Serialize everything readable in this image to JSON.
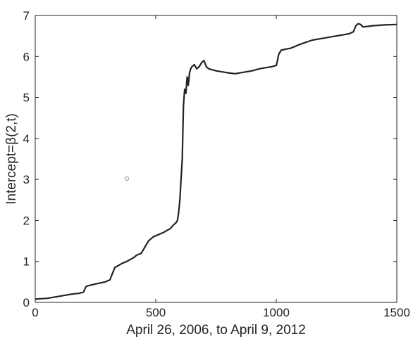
{
  "chart_data": {
    "type": "line",
    "title": "",
    "xlabel": "April 26, 2006, to April 9, 2012",
    "ylabel": "Intercept=β(2,t)",
    "xlim": [
      0,
      1500
    ],
    "ylim": [
      0,
      7
    ],
    "xticks": [
      0,
      500,
      1000,
      1500
    ],
    "yticks": [
      0,
      1,
      2,
      3,
      4,
      5,
      6,
      7
    ],
    "grid": false,
    "legend": "none",
    "line_color": "#222222",
    "marker_color": "#888888",
    "series": [
      {
        "x": [
          0,
          50,
          100,
          120,
          150,
          180,
          200,
          210,
          215,
          250,
          290,
          310,
          320,
          330,
          360,
          380,
          395,
          410,
          420,
          440,
          460,
          470,
          490,
          530,
          560,
          575,
          585,
          590,
          595,
          600,
          605,
          610,
          615,
          620,
          625,
          630,
          635,
          640,
          645,
          650,
          660,
          670,
          680,
          690,
          700,
          710,
          720,
          750,
          780,
          800,
          830,
          850,
          870,
          900,
          930,
          950,
          980,
          1000,
          1005,
          1010,
          1020,
          1040,
          1060,
          1100,
          1150,
          1200,
          1250,
          1300,
          1320,
          1330,
          1340,
          1350,
          1360,
          1400,
          1450,
          1500
        ],
        "y": [
          0.08,
          0.1,
          0.15,
          0.17,
          0.2,
          0.22,
          0.25,
          0.38,
          0.4,
          0.45,
          0.5,
          0.55,
          0.7,
          0.85,
          0.95,
          1.0,
          1.05,
          1.1,
          1.15,
          1.2,
          1.4,
          1.5,
          1.6,
          1.7,
          1.8,
          1.9,
          1.95,
          2.0,
          2.2,
          2.5,
          3.0,
          3.5,
          4.8,
          5.2,
          5.1,
          5.5,
          5.3,
          5.6,
          5.7,
          5.75,
          5.8,
          5.7,
          5.75,
          5.85,
          5.9,
          5.75,
          5.7,
          5.65,
          5.62,
          5.6,
          5.58,
          5.6,
          5.62,
          5.65,
          5.7,
          5.72,
          5.75,
          5.78,
          5.9,
          6.05,
          6.15,
          6.18,
          6.2,
          6.3,
          6.4,
          6.45,
          6.5,
          6.55,
          6.6,
          6.75,
          6.8,
          6.78,
          6.72,
          6.75,
          6.77,
          6.78
        ]
      }
    ],
    "markers": [
      {
        "x": 380,
        "y": 3.02
      }
    ]
  }
}
